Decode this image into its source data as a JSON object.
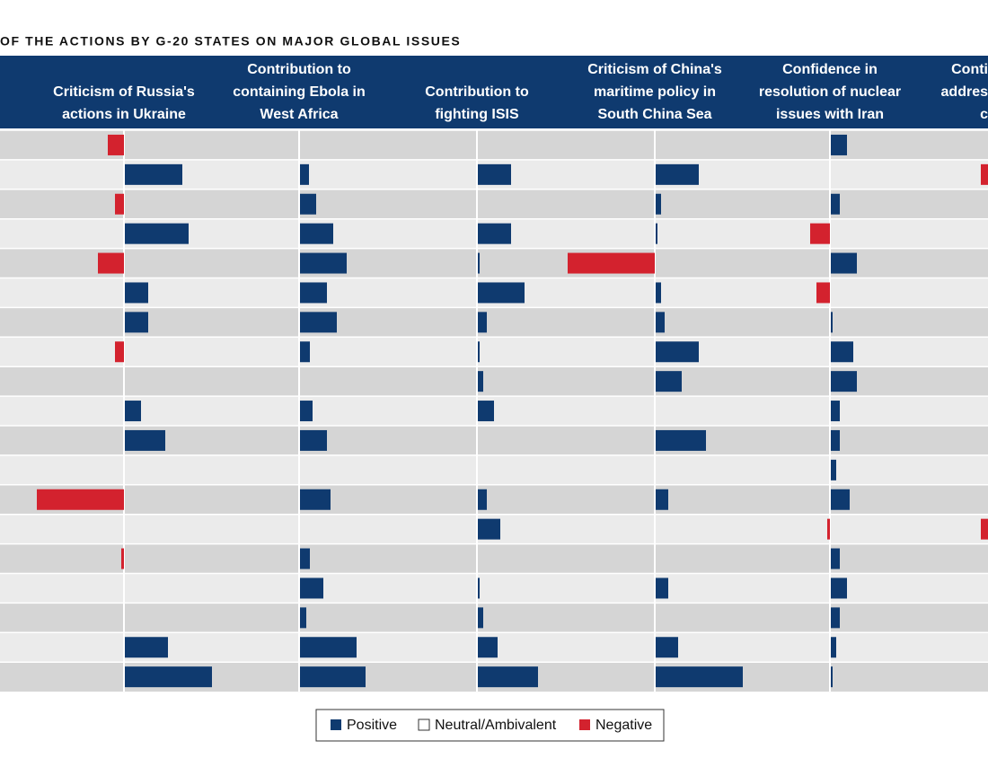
{
  "chart_data": {
    "type": "bar",
    "title": "OF THE ACTIONS BY G-20 STATES ON MAJOR GLOBAL ISSUES",
    "columns": [
      {
        "header": [
          "Criticism of Russia's",
          "actions in Ukraine"
        ],
        "values": [
          -18,
          64,
          -10,
          71,
          -29,
          26,
          26,
          -10,
          0,
          18,
          45,
          0,
          -97,
          0,
          -3,
          0,
          0,
          48,
          97
        ]
      },
      {
        "header": [
          "Contribution to",
          "containing Ebola in",
          "West Africa"
        ],
        "values": [
          0,
          10,
          18,
          37,
          52,
          30,
          41,
          11,
          0,
          14,
          30,
          0,
          34,
          0,
          11,
          26,
          7,
          63,
          73
        ]
      },
      {
        "header": [
          "Contribution to",
          "fighting ISIS"
        ],
        "values": [
          0,
          37,
          0,
          37,
          2,
          52,
          10,
          2,
          6,
          18,
          0,
          0,
          10,
          25,
          0,
          2,
          6,
          22,
          67
        ]
      },
      {
        "header": [
          "Criticism of China's",
          "maritime policy in",
          "South China Sea"
        ],
        "values": [
          0,
          48,
          6,
          2,
          -97,
          6,
          10,
          48,
          29,
          0,
          56,
          0,
          14,
          0,
          0,
          14,
          0,
          25,
          97
        ]
      },
      {
        "header": [
          "Confidence in",
          "resolution of nuclear",
          "issues with Iran"
        ],
        "values": [
          18,
          0,
          10,
          -22,
          29,
          -15,
          2,
          25,
          29,
          10,
          10,
          6,
          21,
          -3,
          10,
          18,
          10,
          6,
          2
        ]
      },
      {
        "header": [
          "Conti",
          "addres",
          "c"
        ],
        "values": [
          0,
          -28,
          0,
          0,
          0,
          0,
          0,
          0,
          0,
          0,
          0,
          0,
          0,
          -28,
          0,
          0,
          0,
          0,
          0
        ]
      }
    ],
    "legend": [
      {
        "label": "Positive",
        "color": "#0f3a6f"
      },
      {
        "label": "Neutral/Ambivalent",
        "color": "#ffffff"
      },
      {
        "label": "Negative",
        "color": "#d3222e"
      }
    ]
  }
}
